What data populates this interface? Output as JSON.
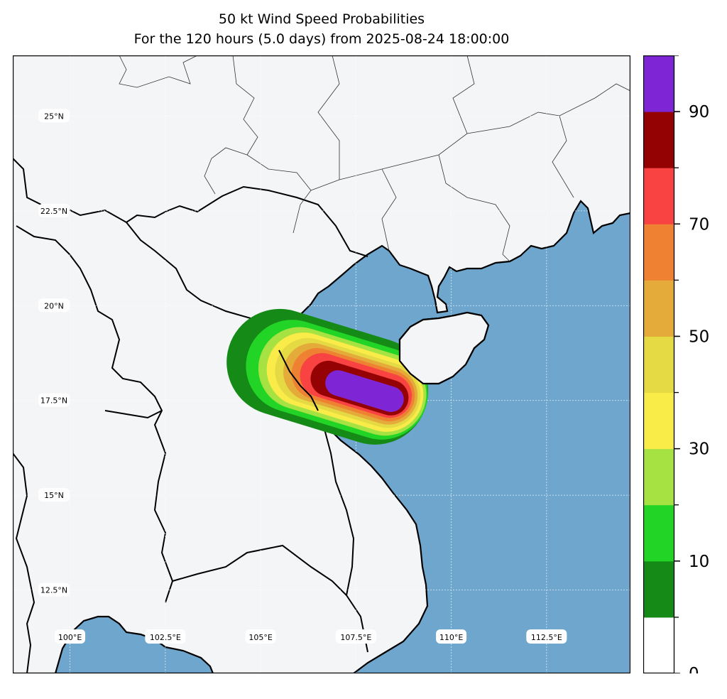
{
  "title": "50 kt Wind Speed Probabilities",
  "subtitle": "For the 120 hours (5.0 days) from 2025-08-24 18:00:00",
  "map": {
    "lon_range": [
      98.5,
      114.7
    ],
    "lat_range": [
      10.3,
      26.6
    ],
    "ocean_color": "#6ea6cd",
    "land_color": "#f4f5f7",
    "lat_labels": [
      "25°N",
      "22.5°N",
      "20°N",
      "17.5°N",
      "15°N",
      "12.5°N"
    ],
    "lon_labels": [
      "100°E",
      "102.5°E",
      "105°E",
      "107.5°E",
      "110°E",
      "112.5°E"
    ]
  },
  "colorbar": {
    "tick_labels": [
      "0",
      "10",
      "30",
      "50",
      "70",
      "90"
    ],
    "bounds": [
      0,
      5,
      10,
      20,
      30,
      40,
      50,
      60,
      70,
      80,
      90,
      100
    ],
    "colors": [
      "#ffffff",
      "#158a17",
      "#22d426",
      "#a5e242",
      "#f9ec48",
      "#e6da44",
      "#e4ab3a",
      "#ee8132",
      "#f94242",
      "#940203",
      "#7e26d6"
    ]
  }
}
